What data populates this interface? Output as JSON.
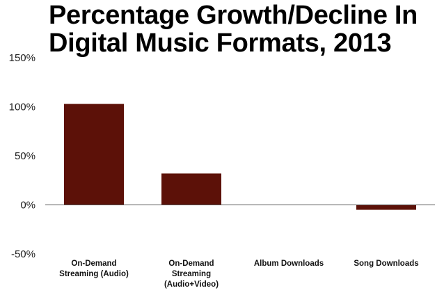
{
  "chart_data": {
    "type": "bar",
    "title_lines": [
      "Percentage Growth/Decline In",
      "Digital Music Formats, 2013"
    ],
    "categories": [
      [
        "On-Demand",
        "Streaming (Audio)"
      ],
      [
        "On-Demand",
        "Streaming",
        "(Audio+Video)"
      ],
      [
        "Album Downloads"
      ],
      [
        "Song Downloads"
      ]
    ],
    "values": [
      103,
      32,
      -0.1,
      -5
    ],
    "ylim": [
      -50,
      150
    ],
    "yticks": [
      150,
      100,
      50,
      0,
      -50
    ],
    "ytick_labels": [
      "150%",
      "100%",
      "50%",
      "0%",
      "-50%"
    ],
    "grid": false,
    "legend": "none",
    "bar_color": "#5c1108",
    "axis_color": "#555555"
  }
}
